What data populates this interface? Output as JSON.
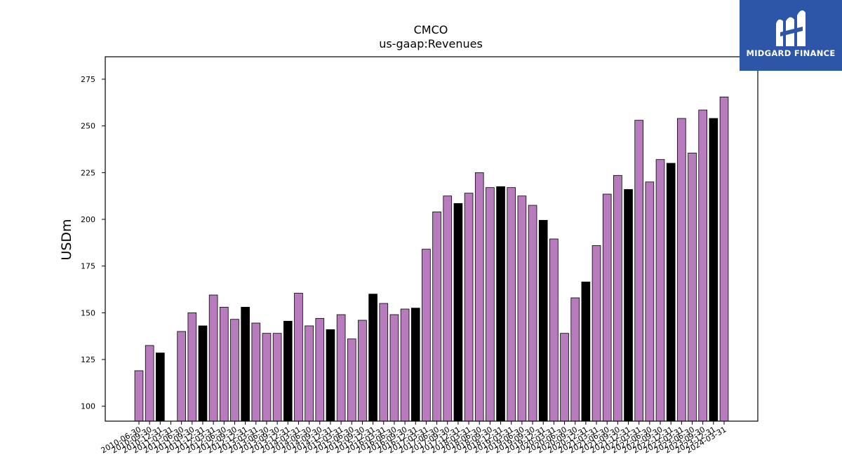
{
  "brand": {
    "name": "MIDGARD FINANCE",
    "logo_icon": "midgard-logo-icon"
  },
  "colors": {
    "regular": "#b87bbd",
    "highlight": "#000000",
    "axis": "#000000"
  },
  "chart_data": {
    "type": "bar",
    "title": "CMCO",
    "subtitle": "us-gaap:Revenues",
    "xlabel": "",
    "ylabel": "USDm",
    "ylim": [
      92,
      287
    ],
    "yticks": [
      100,
      125,
      150,
      175,
      200,
      225,
      250,
      275
    ],
    "grid": false,
    "categories": [
      "2010-06-30",
      "2010-09-30",
      "2010-12-31",
      "2011-03-31",
      "2011-06-30",
      "2011-09-30",
      "2011-12-31",
      "2012-03-31",
      "2012-06-30",
      "2012-09-30",
      "2012-12-31",
      "2013-03-31",
      "2013-06-30",
      "2013-09-30",
      "2013-12-31",
      "2014-03-31",
      "2014-06-30",
      "2014-09-30",
      "2014-12-31",
      "2015-03-31",
      "2015-06-30",
      "2015-09-30",
      "2015-12-31",
      "2016-03-31",
      "2016-06-30",
      "2016-09-30",
      "2016-12-31",
      "2017-03-31",
      "2017-06-30",
      "2017-09-30",
      "2017-12-31",
      "2018-03-31",
      "2018-06-30",
      "2018-09-30",
      "2018-12-31",
      "2019-03-31",
      "2019-06-30",
      "2019-09-30",
      "2019-12-31",
      "2020-03-31",
      "2020-06-30",
      "2020-09-30",
      "2020-12-31",
      "2021-03-31",
      "2021-06-30",
      "2021-09-30",
      "2021-12-31",
      "2022-03-31",
      "2022-06-30",
      "2022-09-30",
      "2022-12-31",
      "2023-03-31",
      "2023-06-30",
      "2023-09-30",
      "2023-12-31",
      "2024-03-31"
    ],
    "values": [
      119,
      132.5,
      128.5,
      null,
      140,
      150,
      143,
      159.5,
      153,
      146.5,
      153,
      144.5,
      139,
      139,
      145.5,
      160.5,
      143,
      147,
      141,
      149,
      136,
      146,
      160,
      155,
      149,
      152,
      152.5,
      184,
      204,
      212.5,
      208.5,
      214,
      225,
      217,
      217.5,
      217,
      212.5,
      207.5,
      199.5,
      189.5,
      139,
      158,
      166.5,
      186,
      213.5,
      223.5,
      216,
      253,
      220,
      232,
      230,
      254,
      235.5,
      258.5,
      254,
      265.5
    ],
    "highlight": [
      false,
      false,
      true,
      false,
      false,
      false,
      true,
      false,
      false,
      false,
      true,
      false,
      false,
      false,
      true,
      false,
      false,
      false,
      true,
      false,
      false,
      false,
      true,
      false,
      false,
      false,
      true,
      false,
      false,
      false,
      true,
      false,
      false,
      false,
      true,
      false,
      false,
      false,
      true,
      false,
      false,
      false,
      true,
      false,
      false,
      false,
      true,
      false,
      false,
      false,
      true,
      false,
      false,
      false,
      true,
      false
    ]
  }
}
